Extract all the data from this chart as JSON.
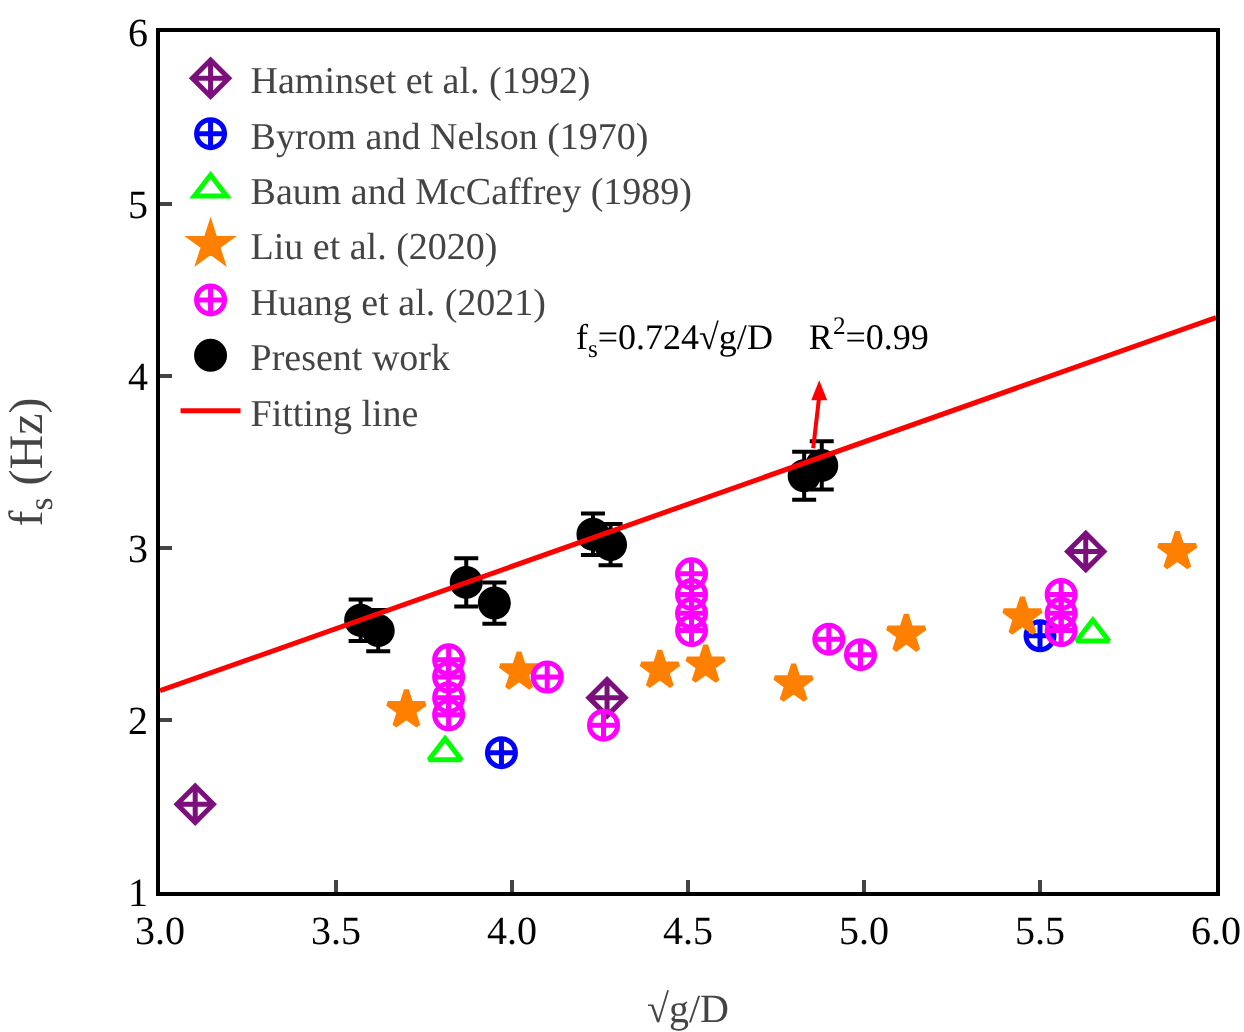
{
  "chart_data": {
    "type": "scatter",
    "xlabel": "√g/D",
    "ylabel": "f$_{s}$ (Hz)",
    "xlim": [
      3.0,
      6.0
    ],
    "xticks": [
      {
        "value": 3,
        "label": "3.0"
      },
      3.5,
      {
        "value": 4,
        "label": "4.0"
      },
      4.5,
      {
        "value": 5,
        "label": "5.0"
      },
      5.5,
      {
        "value": 6,
        "label": "6.0"
      }
    ],
    "ylim": [
      1,
      6
    ],
    "yticks": [
      1,
      2,
      3,
      4,
      5,
      6
    ],
    "grid": false,
    "legend": "top left",
    "series": [
      {
        "name": "Haminset et al. (1992)",
        "color": "#7b0f7b",
        "marker": "diamond",
        "x": [
          3.1,
          4.27,
          5.63
        ],
        "values": [
          1.51,
          2.13,
          2.98
        ]
      },
      {
        "name": "Byrom and Nelson (1970)",
        "color": "#0000ff",
        "marker": "cross",
        "x": [
          3.97,
          5.5
        ],
        "values": [
          1.81,
          2.49
        ]
      },
      {
        "name": "Baum and McCaffrey (1989)",
        "color": "#00ff00",
        "marker": "triangle",
        "x": [
          3.81,
          5.65
        ],
        "values": [
          1.81,
          2.5
        ]
      },
      {
        "name": "Liu et al. (2020)",
        "color": "#ff8000",
        "marker": "star",
        "x": [
          3.7,
          4.02,
          4.42,
          4.55,
          4.8,
          5.12,
          5.45,
          5.89
        ],
        "values": [
          2.06,
          2.28,
          2.29,
          2.32,
          2.21,
          2.5,
          2.6,
          2.98
        ]
      },
      {
        "name": "Huang et al. (2021)",
        "color": "#ff00ff",
        "marker": "cross",
        "x": [
          3.82,
          3.82,
          3.82,
          3.82,
          4.1,
          4.26,
          4.51,
          4.51,
          4.51,
          4.51,
          4.9,
          4.99,
          5.56,
          5.56,
          5.56
        ],
        "values": [
          2.03,
          2.13,
          2.25,
          2.35,
          2.25,
          1.97,
          2.52,
          2.62,
          2.73,
          2.85,
          2.47,
          2.38,
          2.52,
          2.62,
          2.73
        ]
      },
      {
        "name": "Present work",
        "color": "#000000",
        "marker": "circle",
        "x": [
          3.57,
          3.62,
          3.87,
          3.95,
          4.23,
          4.28,
          4.83,
          4.88
        ],
        "values": [
          2.58,
          2.52,
          2.8,
          2.68,
          3.08,
          3.02,
          3.42,
          3.48
        ],
        "errors": [
          0.12,
          0.12,
          0.14,
          0.12,
          0.12,
          0.12,
          0.14,
          0.14
        ]
      },
      {
        "name": "Fitting line",
        "type": "line",
        "color": "#ff0000",
        "marker": "none",
        "x": [
          3.0,
          6.0
        ],
        "values": [
          2.17,
          4.34
        ]
      }
    ],
    "annotations": [
      {
        "text": "f$_{s}$=0.724√g/D    R$^{2}$=0.99",
        "x": 4.85,
        "y": 3.51
      }
    ]
  }
}
